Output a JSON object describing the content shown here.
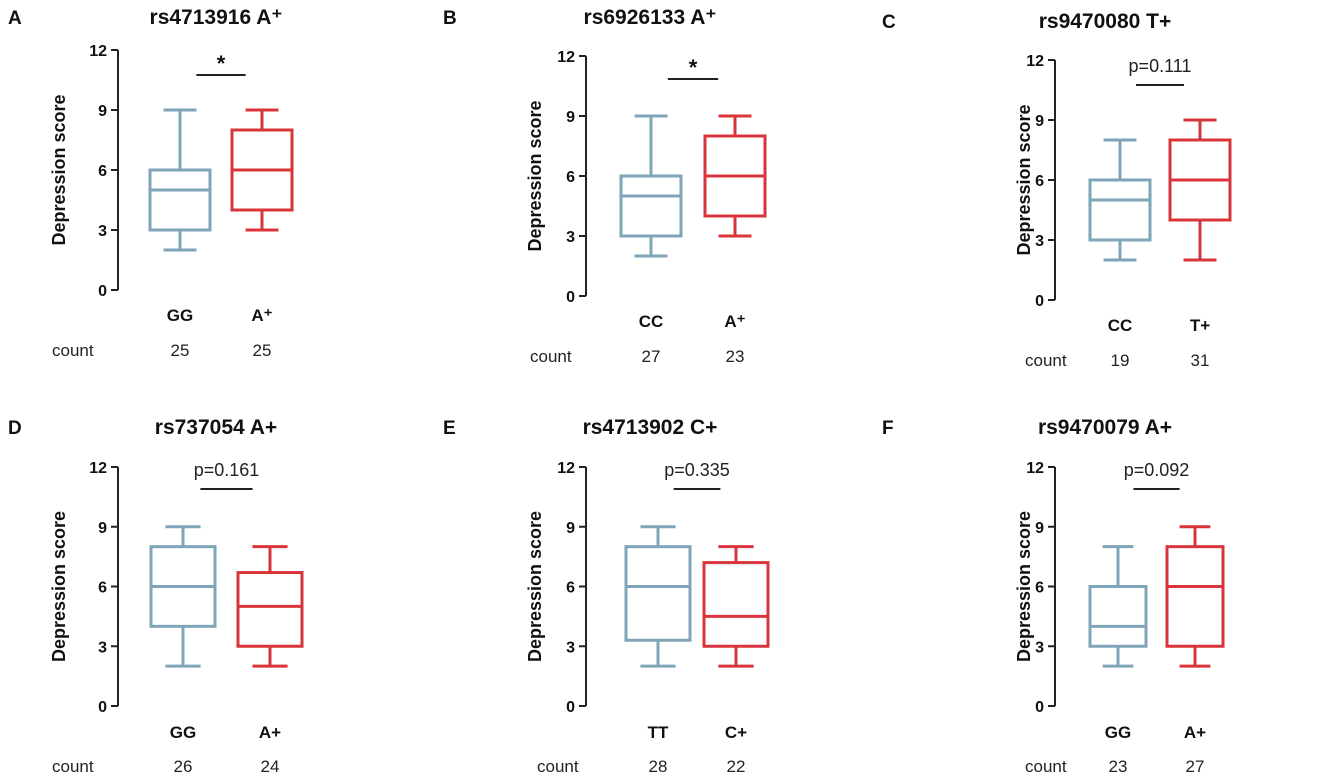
{
  "colors": {
    "group1": "#7fa6b8",
    "group2": "#d9343a",
    "axis": "#222222"
  },
  "chart_data": [
    {
      "panel": "A",
      "type": "box",
      "title": "rs4713916 A⁺",
      "ylabel": "Depression score",
      "ylim": [
        0,
        12
      ],
      "yticks": [
        "0",
        "3",
        "6",
        "9",
        "12"
      ],
      "count_label": "count",
      "significance": "*",
      "groups": [
        {
          "name": "GG",
          "count": "25",
          "min": 2,
          "q1": 3,
          "median": 5,
          "q3": 6,
          "max": 9
        },
        {
          "name": "A⁺",
          "count": "25",
          "min": 3,
          "q1": 4,
          "median": 6,
          "q3": 8,
          "max": 9
        }
      ]
    },
    {
      "panel": "B",
      "type": "box",
      "title": "rs6926133 A⁺",
      "ylabel": "Depression score",
      "ylim": [
        0,
        12
      ],
      "yticks": [
        "0",
        "3",
        "6",
        "9",
        "12"
      ],
      "count_label": "count",
      "significance": "*",
      "groups": [
        {
          "name": "CC",
          "count": "27",
          "min": 2,
          "q1": 3,
          "median": 5,
          "q3": 6,
          "max": 9
        },
        {
          "name": "A⁺",
          "count": "23",
          "min": 3,
          "q1": 4,
          "median": 6,
          "q3": 8,
          "max": 9
        }
      ]
    },
    {
      "panel": "C",
      "type": "box",
      "title": "rs9470080 T+",
      "ylabel": "Depression score",
      "ylim": [
        0,
        12
      ],
      "yticks": [
        "0",
        "3",
        "6",
        "9",
        "12"
      ],
      "count_label": "count",
      "significance": "p=0.111",
      "groups": [
        {
          "name": "CC",
          "count": "19",
          "min": 2,
          "q1": 3,
          "median": 5,
          "q3": 6,
          "max": 8
        },
        {
          "name": "T+",
          "count": "31",
          "min": 2,
          "q1": 4,
          "median": 6,
          "q3": 8,
          "max": 9
        }
      ]
    },
    {
      "panel": "D",
      "type": "box",
      "title": "rs737054 A+",
      "ylabel": "Depression score",
      "ylim": [
        0,
        12
      ],
      "yticks": [
        "0",
        "3",
        "6",
        "9",
        "12"
      ],
      "count_label": "count",
      "significance": "p=0.161",
      "groups": [
        {
          "name": "GG",
          "count": "26",
          "min": 2,
          "q1": 4,
          "median": 6,
          "q3": 8,
          "max": 9
        },
        {
          "name": "A+",
          "count": "24",
          "min": 2,
          "q1": 3,
          "median": 5,
          "q3": 6.7,
          "max": 8
        }
      ]
    },
    {
      "panel": "E",
      "type": "box",
      "title": "rs4713902 C+",
      "ylabel": "Depression score",
      "ylim": [
        0,
        12
      ],
      "yticks": [
        "0",
        "3",
        "6",
        "9",
        "12"
      ],
      "count_label": "count",
      "significance": "p=0.335",
      "groups": [
        {
          "name": "TT",
          "count": "28",
          "min": 2,
          "q1": 3.3,
          "median": 6,
          "q3": 8,
          "max": 9
        },
        {
          "name": "C+",
          "count": "22",
          "min": 2,
          "q1": 3,
          "median": 4.5,
          "q3": 7.2,
          "max": 8
        }
      ]
    },
    {
      "panel": "F",
      "type": "box",
      "title": "rs9470079 A+",
      "ylabel": "Depression score",
      "ylim": [
        0,
        12
      ],
      "yticks": [
        "0",
        "3",
        "6",
        "9",
        "12"
      ],
      "count_label": "count",
      "significance": "p=0.092",
      "groups": [
        {
          "name": "GG",
          "count": "23",
          "min": 2,
          "q1": 3,
          "median": 4,
          "q3": 6,
          "max": 8
        },
        {
          "name": "A+",
          "count": "27",
          "min": 2,
          "q1": 3,
          "median": 6,
          "q3": 8,
          "max": 9
        }
      ]
    }
  ]
}
